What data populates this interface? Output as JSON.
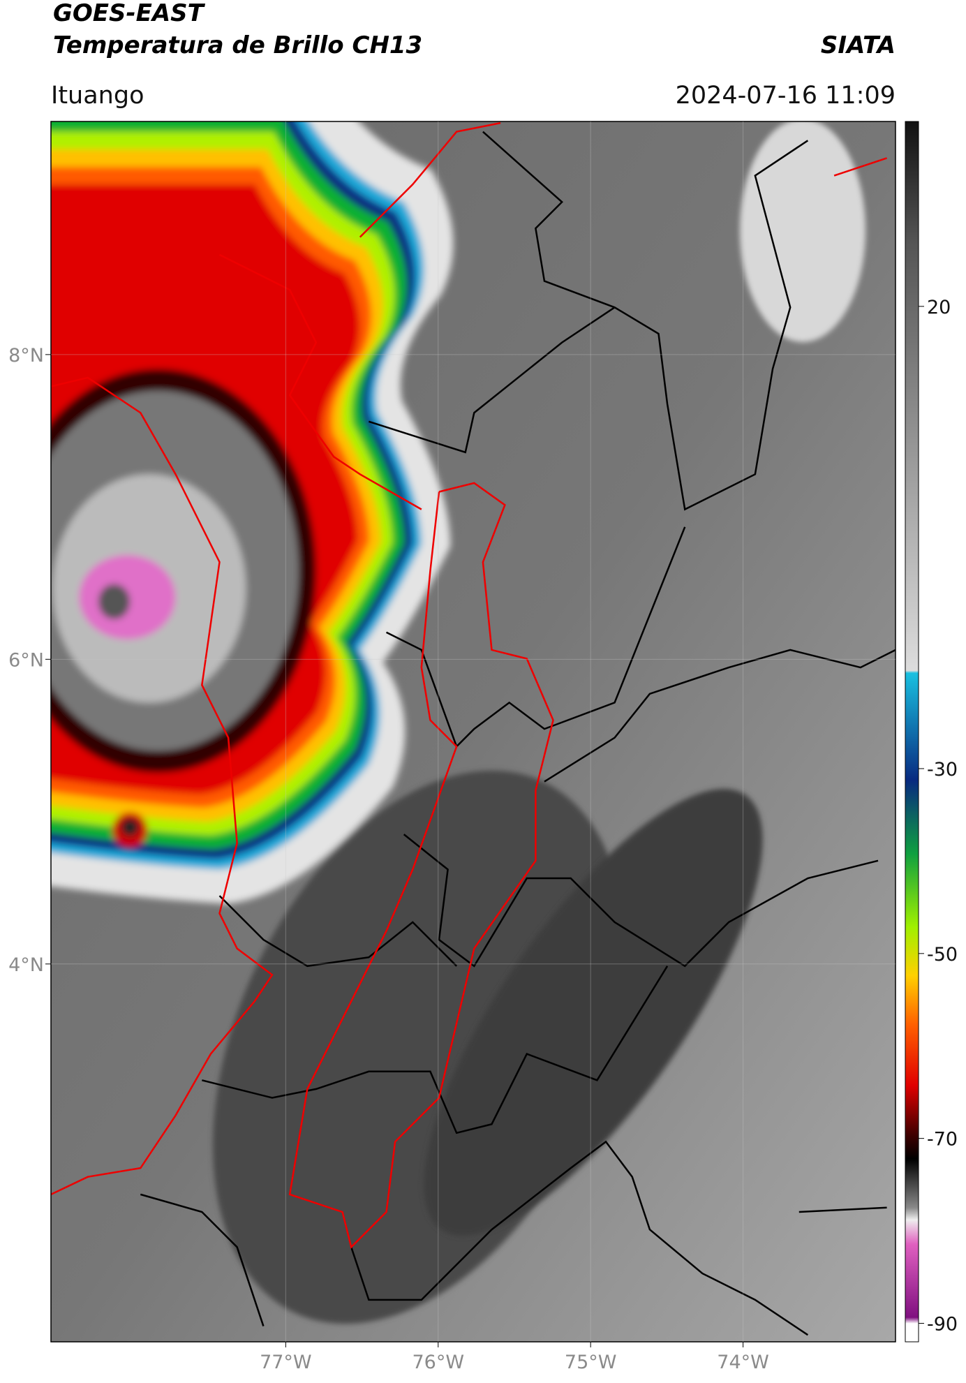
{
  "header": {
    "title_line1": "GOES-EAST",
    "title_line2": "Temperatura de Brillo CH13",
    "agency": "SIATA",
    "location": "Ituango",
    "datetime": "2024-07-16 11:09"
  },
  "map": {
    "xlim": [
      -78.54,
      -73.0
    ],
    "ylim": [
      1.52,
      9.53
    ],
    "xticks": [
      {
        "value": -77,
        "label": "77°W"
      },
      {
        "value": -76,
        "label": "76°W"
      },
      {
        "value": -75,
        "label": "75°W"
      },
      {
        "value": -74,
        "label": "74°W"
      }
    ],
    "yticks": [
      {
        "value": 8,
        "label": "8°N"
      },
      {
        "value": 6,
        "label": "6°N"
      },
      {
        "value": 4,
        "label": "4°N"
      }
    ],
    "grid": true
  },
  "colorbar": {
    "lim": [
      -92,
      40
    ],
    "ticks": [
      20,
      -30,
      -50,
      -70,
      -90
    ]
  }
}
